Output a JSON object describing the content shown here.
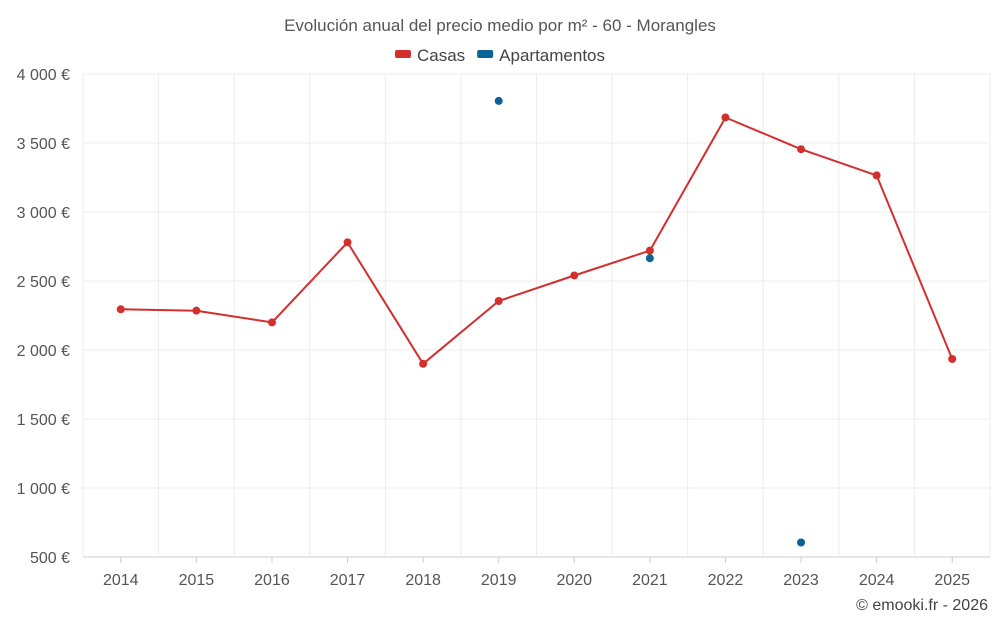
{
  "chart_data": {
    "type": "line",
    "title": "Evolución anual del precio medio por m² - 60 - Morangles",
    "categories": [
      "2014",
      "2015",
      "2016",
      "2017",
      "2018",
      "2019",
      "2020",
      "2021",
      "2022",
      "2023",
      "2024",
      "2025"
    ],
    "y_tick_labels": [
      "500 €",
      "1 000 €",
      "1 500 €",
      "2 000 €",
      "2 500 €",
      "3 000 €",
      "3 500 €",
      "4 000 €"
    ],
    "y_ticks": [
      500,
      1000,
      1500,
      2000,
      2500,
      3000,
      3500,
      4000
    ],
    "ylim": [
      500,
      4000
    ],
    "grid": true,
    "legend_position": "top-center",
    "series": [
      {
        "name": "Casas",
        "color": "#d32f2f",
        "line": true,
        "values": [
          2295,
          2285,
          2200,
          2780,
          1900,
          2355,
          2540,
          2720,
          3685,
          3455,
          3265,
          1935
        ]
      },
      {
        "name": "Apartamentos",
        "color": "#0b6294",
        "line": false,
        "values": [
          null,
          null,
          null,
          null,
          null,
          3805,
          null,
          2665,
          null,
          605,
          null,
          null
        ]
      }
    ],
    "credit": "© emooki.fr - 2026"
  }
}
